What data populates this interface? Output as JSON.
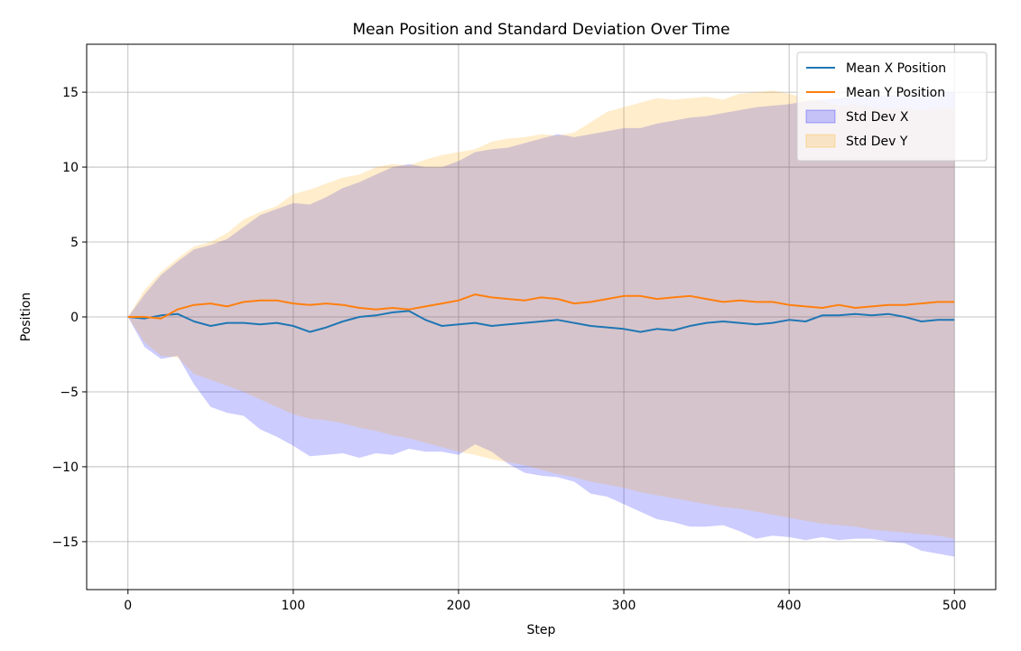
{
  "chart_data": {
    "type": "line",
    "title": "Mean Position and Standard Deviation Over Time",
    "xlabel": "Step",
    "ylabel": "Position",
    "xlim": [
      -25,
      525
    ],
    "ylim": [
      -18.2,
      18.2
    ],
    "xticks": [
      0,
      100,
      200,
      300,
      400,
      500
    ],
    "yticks": [
      -15,
      -10,
      -5,
      0,
      5,
      10,
      15
    ],
    "xtick_labels": [
      "0",
      "100",
      "200",
      "300",
      "400",
      "500"
    ],
    "ytick_labels": [
      "−15",
      "−10",
      "−5",
      "0",
      "5",
      "10",
      "15"
    ],
    "grid": true,
    "legend_position": "top-right",
    "x": [
      0,
      10,
      20,
      30,
      40,
      50,
      60,
      70,
      80,
      90,
      100,
      110,
      120,
      130,
      140,
      150,
      160,
      170,
      180,
      190,
      200,
      210,
      220,
      230,
      240,
      250,
      260,
      270,
      280,
      290,
      300,
      310,
      320,
      330,
      340,
      350,
      360,
      370,
      380,
      390,
      400,
      410,
      420,
      430,
      440,
      450,
      460,
      470,
      480,
      490,
      500
    ],
    "series": [
      {
        "name": "Mean X Position",
        "kind": "line",
        "color": "#1f77b4",
        "values": [
          0,
          -0.1,
          0.1,
          0.2,
          -0.3,
          -0.6,
          -0.4,
          -0.4,
          -0.5,
          -0.4,
          -0.6,
          -1.0,
          -0.7,
          -0.3,
          0.0,
          0.1,
          0.3,
          0.4,
          -0.2,
          -0.6,
          -0.5,
          -0.4,
          -0.6,
          -0.5,
          -0.4,
          -0.3,
          -0.2,
          -0.4,
          -0.6,
          -0.7,
          -0.8,
          -1.0,
          -0.8,
          -0.9,
          -0.6,
          -0.4,
          -0.3,
          -0.4,
          -0.5,
          -0.4,
          -0.2,
          -0.3,
          0.1,
          0.1,
          0.2,
          0.1,
          0.2,
          0.0,
          -0.3,
          -0.2,
          -0.2
        ]
      },
      {
        "name": "Mean Y Position",
        "kind": "line",
        "color": "#ff7f0e",
        "values": [
          0,
          0.0,
          -0.1,
          0.5,
          0.8,
          0.9,
          0.7,
          1.0,
          1.1,
          1.1,
          0.9,
          0.8,
          0.9,
          0.8,
          0.6,
          0.5,
          0.6,
          0.5,
          0.7,
          0.9,
          1.1,
          1.5,
          1.3,
          1.2,
          1.1,
          1.3,
          1.2,
          0.9,
          1.0,
          1.2,
          1.4,
          1.4,
          1.2,
          1.3,
          1.4,
          1.2,
          1.0,
          1.1,
          1.0,
          1.0,
          0.8,
          0.7,
          0.6,
          0.8,
          0.6,
          0.7,
          0.8,
          0.8,
          0.9,
          1.0,
          1.0
        ]
      },
      {
        "name": "Std Dev X",
        "kind": "band",
        "color": "#0000ff",
        "opacity": 0.2,
        "lower": [
          0,
          -2.0,
          -2.8,
          -2.6,
          -4.5,
          -6.0,
          -6.4,
          -6.6,
          -7.5,
          -8.0,
          -8.6,
          -9.3,
          -9.2,
          -9.1,
          -9.4,
          -9.1,
          -9.2,
          -8.8,
          -9.0,
          -9.0,
          -9.2,
          -8.5,
          -9.0,
          -9.8,
          -10.4,
          -10.6,
          -10.7,
          -11.0,
          -11.8,
          -12.0,
          -12.5,
          -13.0,
          -13.5,
          -13.7,
          -14.0,
          -14.0,
          -13.9,
          -14.3,
          -14.8,
          -14.6,
          -14.7,
          -14.9,
          -14.7,
          -14.9,
          -14.8,
          -14.8,
          -15.0,
          -15.1,
          -15.6,
          -15.8,
          -16.0
        ],
        "upper": [
          0,
          1.5,
          2.8,
          3.7,
          4.5,
          4.8,
          5.2,
          6.0,
          6.8,
          7.2,
          7.6,
          7.5,
          8.0,
          8.6,
          9.0,
          9.5,
          10.0,
          10.2,
          10.0,
          10.0,
          10.4,
          11.0,
          11.2,
          11.3,
          11.6,
          11.9,
          12.2,
          12.0,
          12.2,
          12.4,
          12.6,
          12.6,
          12.9,
          13.1,
          13.3,
          13.4,
          13.6,
          13.8,
          14.0,
          14.1,
          14.2,
          14.4,
          14.5,
          14.6,
          14.7,
          14.7,
          14.8,
          14.8,
          14.9,
          15.0,
          15.0
        ]
      },
      {
        "name": "Std Dev Y",
        "kind": "band",
        "color": "#ffa500",
        "opacity": 0.2,
        "lower": [
          0,
          -1.7,
          -2.6,
          -2.7,
          -3.8,
          -4.2,
          -4.6,
          -5.0,
          -5.5,
          -6.0,
          -6.5,
          -6.8,
          -6.9,
          -7.1,
          -7.4,
          -7.6,
          -7.9,
          -8.1,
          -8.4,
          -8.7,
          -9.0,
          -9.2,
          -9.5,
          -9.7,
          -9.9,
          -10.2,
          -10.5,
          -10.7,
          -11.0,
          -11.2,
          -11.4,
          -11.7,
          -11.9,
          -12.1,
          -12.3,
          -12.5,
          -12.7,
          -12.8,
          -13.0,
          -13.2,
          -13.4,
          -13.6,
          -13.8,
          -13.9,
          -14.0,
          -14.2,
          -14.3,
          -14.4,
          -14.5,
          -14.6,
          -14.8
        ],
        "upper": [
          0,
          1.8,
          3.0,
          3.9,
          4.7,
          5.0,
          5.6,
          6.5,
          7.0,
          7.4,
          8.2,
          8.5,
          8.9,
          9.3,
          9.5,
          10.0,
          10.2,
          10.1,
          10.5,
          10.8,
          11.0,
          11.2,
          11.7,
          11.9,
          12.0,
          12.2,
          12.1,
          12.3,
          13.0,
          13.7,
          14.0,
          14.3,
          14.6,
          14.5,
          14.6,
          14.7,
          14.5,
          14.9,
          15.0,
          15.1,
          14.9,
          14.6,
          14.4,
          14.1,
          14.2,
          14.0,
          13.9,
          14.0,
          13.8,
          14.0,
          13.9
        ]
      }
    ]
  }
}
